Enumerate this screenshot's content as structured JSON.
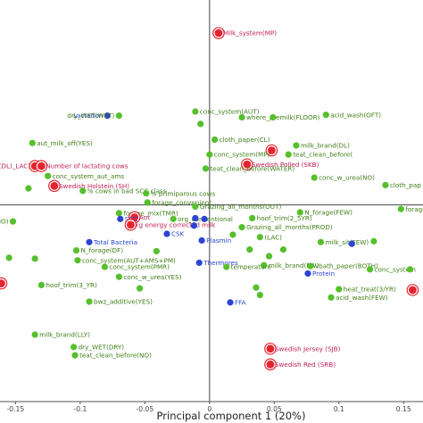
{
  "chart_data": {
    "type": "scatter",
    "xlabel": "Principal component 1 (20%)",
    "ylabel": "",
    "xlim": [
      -0.162,
      0.165
    ],
    "ylim": [
      -0.238,
      0.248
    ],
    "x_ticks": [
      "-0.15",
      "-0.1",
      "-0.05",
      "0",
      "0.05",
      "0.1",
      "0.15"
    ],
    "colors": {
      "green": "#55c02c",
      "blue": "#2c44d6",
      "red": "#e6242f",
      "green_text": "#3f7f16",
      "red_text": "#c01c52"
    },
    "points": [
      {
        "x": 0.007,
        "y": 0.208,
        "color": "red",
        "label": "Milk_system(MP)",
        "anchor": "start"
      },
      {
        "x": -0.079,
        "y": 0.108,
        "color": "blue",
        "label": "Lactation",
        "anchor": "end"
      },
      {
        "x": -0.07,
        "y": 0.108,
        "color": "green",
        "label": "dry_WET(WET)",
        "anchor": "end"
      },
      {
        "x": -0.011,
        "y": 0.113,
        "color": "green",
        "label": "conc_system(AUT)",
        "anchor": "start"
      },
      {
        "x": -0.007,
        "y": 0.098,
        "color": "green",
        "label": "",
        "anchor": "start"
      },
      {
        "x": 0.025,
        "y": 0.106,
        "color": "green",
        "label": "where_premilk(FLOOR)",
        "anchor": "start"
      },
      {
        "x": 0.09,
        "y": 0.109,
        "color": "green",
        "label": "acid_wash(OFT)",
        "anchor": "start"
      },
      {
        "x": 0.049,
        "y": 0.106,
        "color": "green",
        "label": "",
        "anchor": "start"
      },
      {
        "x": -0.137,
        "y": 0.075,
        "color": "green",
        "label": "aut_milk_off(YES)",
        "anchor": "start"
      },
      {
        "x": 0.004,
        "y": 0.079,
        "color": "green",
        "label": "cloth_paper(CL)",
        "anchor": "start"
      },
      {
        "x": 0.067,
        "y": 0.072,
        "color": "green",
        "label": "milk_brand(DL)",
        "anchor": "start"
      },
      {
        "x": 0.048,
        "y": 0.066,
        "color": "red",
        "label": "",
        "anchor": "start"
      },
      {
        "x": 0.061,
        "y": 0.061,
        "color": "green",
        "label": "teat_clean_before(",
        "anchor": "start"
      },
      {
        "x": -0.0,
        "y": 0.061,
        "color": "green",
        "label": "conc_system(MP)",
        "anchor": "start"
      },
      {
        "x": -0.135,
        "y": 0.047,
        "color": "red",
        "label": "ousing(DL)_LAC)",
        "anchor": "end"
      },
      {
        "x": -0.13,
        "y": 0.047,
        "color": "red",
        "label": "Number of lactating cows",
        "anchor": "start"
      },
      {
        "x": 0.029,
        "y": 0.049,
        "color": "red",
        "label": "Swedish Polled (SKB)",
        "anchor": "start"
      },
      {
        "x": -0.003,
        "y": 0.044,
        "color": "green",
        "label": "teat_clean_before(WATER)",
        "anchor": "start"
      },
      {
        "x": -0.125,
        "y": 0.035,
        "color": "green",
        "label": "conc_system_aut_ams",
        "anchor": "start"
      },
      {
        "x": -0.12,
        "y": 0.023,
        "color": "red",
        "label": "Swedish Holstein (SH)",
        "anchor": "start"
      },
      {
        "x": -0.14,
        "y": 0.02,
        "color": "green",
        "label": "",
        "anchor": "start"
      },
      {
        "x": -0.098,
        "y": 0.017,
        "color": "green",
        "label": "% cows in bad SCC class",
        "anchor": "start"
      },
      {
        "x": -0.049,
        "y": 0.014,
        "color": "green",
        "label": "% primiparous cows",
        "anchor": "start"
      },
      {
        "x": 0.081,
        "y": 0.033,
        "color": "green",
        "label": "conc_w_urea(NO)",
        "anchor": "start"
      },
      {
        "x": 0.136,
        "y": 0.024,
        "color": "green",
        "label": "cloth_pap",
        "anchor": "start"
      },
      {
        "x": -0.048,
        "y": 0.003,
        "color": "green",
        "label": "forage_convenient",
        "anchor": "start"
      },
      {
        "x": -0.011,
        "y": -0.002,
        "color": "green",
        "label": "Grazing_all_months(OUT)",
        "anchor": "start"
      },
      {
        "x": 0.07,
        "y": -0.009,
        "color": "green",
        "label": "N_forage(FEW)",
        "anchor": "start"
      },
      {
        "x": 0.148,
        "y": -0.005,
        "color": "green",
        "label": "forage_syst",
        "anchor": "start"
      },
      {
        "x": -0.152,
        "y": -0.02,
        "color": "green",
        "label": "hi_SCC_last(NO)",
        "anchor": "end"
      },
      {
        "x": -0.07,
        "y": -0.01,
        "color": "green",
        "label": "forage_mix(TMR)",
        "anchor": "start"
      },
      {
        "x": -0.058,
        "y": -0.015,
        "color": "red",
        "label": "Aut",
        "anchor": "start"
      },
      {
        "x": -0.069,
        "y": -0.017,
        "color": "blue",
        "label": "SCC",
        "anchor": "start"
      },
      {
        "x": -0.028,
        "y": -0.017,
        "color": "green",
        "label": "org_conventional",
        "anchor": "start"
      },
      {
        "x": -0.011,
        "y": -0.016,
        "color": "blue",
        "label": "",
        "anchor": "start"
      },
      {
        "x": -0.004,
        "y": -0.017,
        "color": "blue",
        "label": "",
        "anchor": "start"
      },
      {
        "x": 0.033,
        "y": -0.016,
        "color": "green",
        "label": "hoof_trim(2_5YR)",
        "anchor": "start"
      },
      {
        "x": -0.061,
        "y": -0.024,
        "color": "red",
        "label": "kg energy corrected milk",
        "anchor": "start"
      },
      {
        "x": -0.012,
        "y": -0.025,
        "color": "blue",
        "label": "",
        "anchor": "start"
      },
      {
        "x": 0.025,
        "y": -0.027,
        "color": "green",
        "label": "Grazing_all_months(PROD)",
        "anchor": "start"
      },
      {
        "x": -0.033,
        "y": -0.035,
        "color": "blue",
        "label": "CSK",
        "anchor": "start"
      },
      {
        "x": 0.018,
        "y": -0.036,
        "color": "green",
        "label": "",
        "anchor": "start"
      },
      {
        "x": 0.039,
        "y": -0.039,
        "color": "green",
        "label": "(LAC)",
        "anchor": "start"
      },
      {
        "x": -0.093,
        "y": -0.045,
        "color": "blue",
        "label": "Total Bacteria",
        "anchor": "start"
      },
      {
        "x": -0.006,
        "y": -0.043,
        "color": "blue",
        "label": "Plasmin",
        "anchor": "start"
      },
      {
        "x": 0.086,
        "y": -0.045,
        "color": "green",
        "label": "milk_sit(FEW)",
        "anchor": "start"
      },
      {
        "x": 0.11,
        "y": -0.047,
        "color": "blue",
        "label": "",
        "anchor": "start"
      },
      {
        "x": 0.127,
        "y": -0.044,
        "color": "green",
        "label": "",
        "anchor": "start"
      },
      {
        "x": -0.103,
        "y": -0.055,
        "color": "green",
        "label": "N_forage(DF)",
        "anchor": "start"
      },
      {
        "x": -0.041,
        "y": -0.056,
        "color": "green",
        "label": "",
        "anchor": "start"
      },
      {
        "x": 0.031,
        "y": -0.054,
        "color": "green",
        "label": "",
        "anchor": "start"
      },
      {
        "x": 0.057,
        "y": -0.054,
        "color": "green",
        "label": "",
        "anchor": "start"
      },
      {
        "x": 0.046,
        "y": -0.062,
        "color": "green",
        "label": "",
        "anchor": "start"
      },
      {
        "x": -0.155,
        "y": -0.064,
        "color": "green",
        "label": "",
        "anchor": "start"
      },
      {
        "x": -0.135,
        "y": -0.065,
        "color": "green",
        "label": "",
        "anchor": "start"
      },
      {
        "x": -0.102,
        "y": -0.067,
        "color": "green",
        "label": "conc_system(AUT+AMS+PM)",
        "anchor": "start"
      },
      {
        "x": -0.008,
        "y": -0.07,
        "color": "blue",
        "label": "Thermores",
        "anchor": "start"
      },
      {
        "x": -0.081,
        "y": -0.075,
        "color": "green",
        "label": "conc_system(PMR)",
        "anchor": "start"
      },
      {
        "x": 0.042,
        "y": -0.073,
        "color": "green",
        "label": "milk_brand(FW)",
        "anchor": "start"
      },
      {
        "x": 0.013,
        "y": -0.075,
        "color": "green",
        "label": "temperature",
        "anchor": "start"
      },
      {
        "x": 0.078,
        "y": -0.074,
        "color": "green",
        "label": "vbath_paper(BOTH)",
        "anchor": "start"
      },
      {
        "x": 0.076,
        "y": -0.083,
        "color": "blue",
        "label": "Protein",
        "anchor": "start"
      },
      {
        "x": 0.124,
        "y": -0.078,
        "color": "green",
        "label": "conc_system",
        "anchor": "start"
      },
      {
        "x": 0.155,
        "y": -0.078,
        "color": "green",
        "label": "",
        "anchor": "start"
      },
      {
        "x": -0.07,
        "y": -0.087,
        "color": "green",
        "label": "conc_w_urea(YES)",
        "anchor": "start"
      },
      {
        "x": -0.161,
        "y": -0.095,
        "color": "red",
        "label": "",
        "anchor": "end"
      },
      {
        "x": -0.13,
        "y": -0.097,
        "color": "green",
        "label": "hoof_trim(3_YR)",
        "anchor": "start"
      },
      {
        "x": -0.054,
        "y": -0.101,
        "color": "green",
        "label": "",
        "anchor": "start"
      },
      {
        "x": 0.036,
        "y": -0.1,
        "color": "green",
        "label": "",
        "anchor": "start"
      },
      {
        "x": 0.039,
        "y": -0.109,
        "color": "green",
        "label": "",
        "anchor": "start"
      },
      {
        "x": 0.016,
        "y": -0.118,
        "color": "blue",
        "label": "FFA",
        "anchor": "start"
      },
      {
        "x": 0.1,
        "y": -0.102,
        "color": "green",
        "label": "heat_treat(3/YR)",
        "anchor": "start"
      },
      {
        "x": 0.094,
        "y": -0.112,
        "color": "green",
        "label": "acid_wash(FEW)",
        "anchor": "start"
      },
      {
        "x": 0.157,
        "y": -0.103,
        "color": "red",
        "label": "",
        "anchor": "start"
      },
      {
        "x": -0.093,
        "y": -0.117,
        "color": "green",
        "label": "bwz_additive(YES)",
        "anchor": "start"
      },
      {
        "x": -0.135,
        "y": -0.157,
        "color": "green",
        "label": "milk_brand(LLY)",
        "anchor": "start"
      },
      {
        "x": -0.105,
        "y": -0.172,
        "color": "green",
        "label": "dry_WET(DRY)",
        "anchor": "start"
      },
      {
        "x": -0.104,
        "y": -0.182,
        "color": "green",
        "label": "teat_clean_before(NO)",
        "anchor": "start"
      },
      {
        "x": 0.047,
        "y": -0.174,
        "color": "red",
        "label": "Swedish Jersey (SJB)",
        "anchor": "start"
      },
      {
        "x": 0.047,
        "y": -0.193,
        "color": "red",
        "label": "Swedish Red (SRB)",
        "anchor": "start"
      }
    ]
  }
}
